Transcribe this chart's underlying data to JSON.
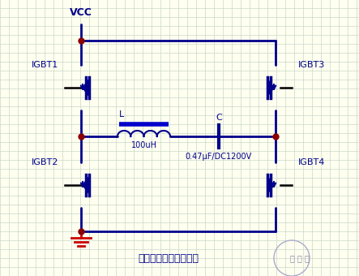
{
  "bg_color": "#fffff0",
  "grid_color": "#c8d8c8",
  "line_color": "#00008b",
  "dot_color": "#8b0000",
  "gnd_color": "#cc0000",
  "text_color": "#00008b",
  "title_text": "电磁炉全桥主电路结构",
  "vcc_text": "VCC",
  "label_L": "L",
  "label_100uH": "100uH",
  "label_C": "C",
  "label_cap": "0.47μF/DC1200V",
  "igbt1": "IGBT1",
  "igbt2": "IGBT2",
  "igbt3": "IGBT3",
  "igbt4": "IGBT4"
}
